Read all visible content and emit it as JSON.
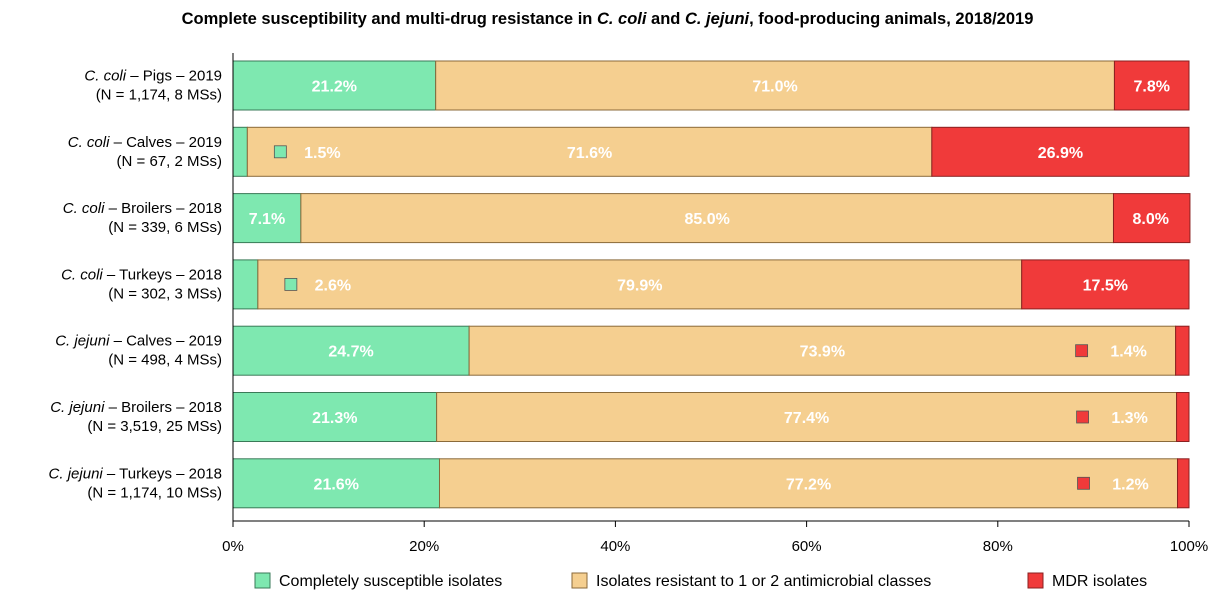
{
  "chart_data": {
    "type": "bar",
    "orientation": "horizontal",
    "stacked": true,
    "title_parts": [
      {
        "text": "Complete susceptibility and multi-drug resistance in ",
        "italic": false
      },
      {
        "text": "C. coli",
        "italic": true
      },
      {
        "text": " and ",
        "italic": false
      },
      {
        "text": "C. jejuni",
        "italic": true
      },
      {
        "text": ", food-producing animals, 2018/2019",
        "italic": false
      }
    ],
    "categories": [
      {
        "species": "C. coli",
        "rest": " – Pigs – 2019",
        "n": "(N = 1,174, 8 MSs)"
      },
      {
        "species": "C. coli",
        "rest": " – Calves – 2019",
        "n": "(N = 67, 2 MSs)"
      },
      {
        "species": "C. coli",
        "rest": " – Broilers – 2018",
        "n": "(N = 339, 6 MSs)"
      },
      {
        "species": "C. coli",
        "rest": " – Turkeys – 2018",
        "n": "(N = 302, 3 MSs)"
      },
      {
        "species": "C. jejuni",
        "rest": " – Calves – 2019",
        "n": "(N = 498, 4 MSs)"
      },
      {
        "species": "C. jejuni",
        "rest": " – Broilers – 2018",
        "n": "(N = 3,519, 25 MSs)"
      },
      {
        "species": "C. jejuni",
        "rest": " – Turkeys – 2018",
        "n": "(N = 1,174, 10 MSs)"
      }
    ],
    "series": [
      {
        "name": "Completely susceptible isolates",
        "color": "#7ee8b0",
        "values": [
          21.2,
          1.5,
          7.1,
          2.6,
          24.7,
          21.3,
          21.6
        ]
      },
      {
        "name": "Isolates resistant to 1 or 2 antimicrobial classes",
        "color": "#f5cf90",
        "values": [
          71.0,
          71.6,
          85.0,
          79.9,
          73.9,
          77.4,
          77.2
        ]
      },
      {
        "name": "MDR isolates",
        "color": "#f03a3a",
        "values": [
          7.8,
          26.9,
          8.0,
          17.5,
          1.4,
          1.3,
          1.2
        ]
      }
    ],
    "data_labels": [
      [
        "21.2%",
        "71.0%",
        "7.8%"
      ],
      [
        "1.5%",
        "71.6%",
        "26.9%"
      ],
      [
        "7.1%",
        "85.0%",
        "8.0%"
      ],
      [
        "2.6%",
        "79.9%",
        "17.5%"
      ],
      [
        "24.7%",
        "73.9%",
        "1.4%"
      ],
      [
        "21.3%",
        "77.4%",
        "1.3%"
      ],
      [
        "21.6%",
        "77.2%",
        "1.2%"
      ]
    ],
    "x_ticks": [
      "0%",
      "20%",
      "40%",
      "60%",
      "80%",
      "100%"
    ],
    "xlim": [
      0,
      100
    ],
    "grid": false,
    "legend_position": "bottom"
  }
}
